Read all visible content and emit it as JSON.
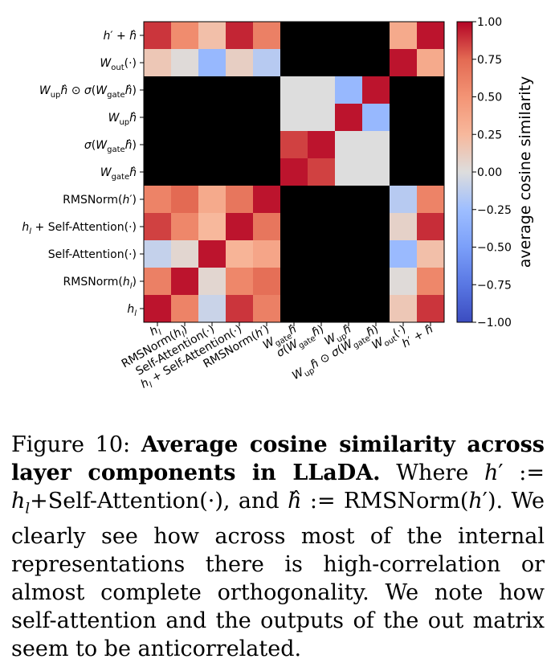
{
  "chart_data": {
    "type": "heatmap",
    "rows_top_to_bottom": [
      "h' + ĥ",
      "W_out(·)",
      "W_up ĥ ⊙ σ(W_gate ĥ)",
      "W_up ĥ",
      "σ(W_gate ĥ)",
      "W_gate ĥ",
      "RMSNorm(h')",
      "h_l + Self-Attention(·)",
      "Self-Attention(·)",
      "RMSNorm(h_l)",
      "h_l"
    ],
    "columns_left_to_right": [
      "h_l",
      "RMSNorm(h_l)",
      "Self-Attention(·)",
      "h_l + Self-Attention(·)",
      "RMSNorm(h')",
      "W_gate ĥ",
      "σ(W_gate ĥ)",
      "W_up ĥ",
      "W_up ĥ ⊙ σ(W_gate ĥ)",
      "W_out(·)",
      "h' + ĥ"
    ],
    "values": [
      [
        0.88,
        0.55,
        0.2,
        0.92,
        0.62,
        null,
        null,
        null,
        null,
        0.35,
        0.96
      ],
      [
        0.15,
        0.02,
        -0.3,
        0.1,
        -0.15,
        null,
        null,
        null,
        null,
        0.96,
        0.35
      ],
      [
        null,
        null,
        null,
        null,
        null,
        0.0,
        0.0,
        -0.3,
        0.96,
        null,
        null
      ],
      [
        null,
        null,
        null,
        null,
        null,
        0.0,
        0.0,
        0.96,
        -0.3,
        null,
        null
      ],
      [
        null,
        null,
        null,
        null,
        null,
        0.85,
        0.96,
        0.0,
        0.0,
        null,
        null
      ],
      [
        null,
        null,
        null,
        null,
        null,
        0.96,
        0.85,
        0.0,
        0.0,
        null,
        null
      ],
      [
        0.6,
        0.75,
        0.35,
        0.68,
        0.96,
        null,
        null,
        null,
        null,
        -0.15,
        0.6
      ],
      [
        0.85,
        0.58,
        0.25,
        0.96,
        0.68,
        null,
        null,
        null,
        null,
        0.08,
        0.9
      ],
      [
        -0.1,
        0.05,
        0.96,
        0.28,
        0.38,
        null,
        null,
        null,
        null,
        -0.28,
        0.2
      ],
      [
        0.62,
        0.96,
        0.05,
        0.58,
        0.72,
        null,
        null,
        null,
        null,
        0.02,
        0.58
      ],
      [
        0.96,
        0.6,
        -0.08,
        0.88,
        0.62,
        null,
        null,
        null,
        null,
        0.15,
        0.88
      ]
    ],
    "null_color": "#000000",
    "colormap": "coolwarm",
    "vmin": -1.0,
    "vmax": 1.0,
    "colorbar": {
      "label": "average cosine similarity",
      "ticks": [
        "1.00",
        "0.75",
        "0.50",
        "0.25",
        "0.00",
        "−0.25",
        "−0.50",
        "−0.75",
        "−1.00"
      ]
    }
  },
  "caption": {
    "figure_label": "Figure 10:",
    "bold_title": "Average cosine similarity across layer components in LLaDA.",
    "text_1": "Where",
    "text_2": "+Self-Attention(·), and",
    "text_3": "RMSNorm(",
    "text_4": "). We clearly see how across most of the internal representations there is high-correlation or almost complete orthogonality. We note how self-attention and the outputs of the out matrix seem to be anticorrelated."
  }
}
